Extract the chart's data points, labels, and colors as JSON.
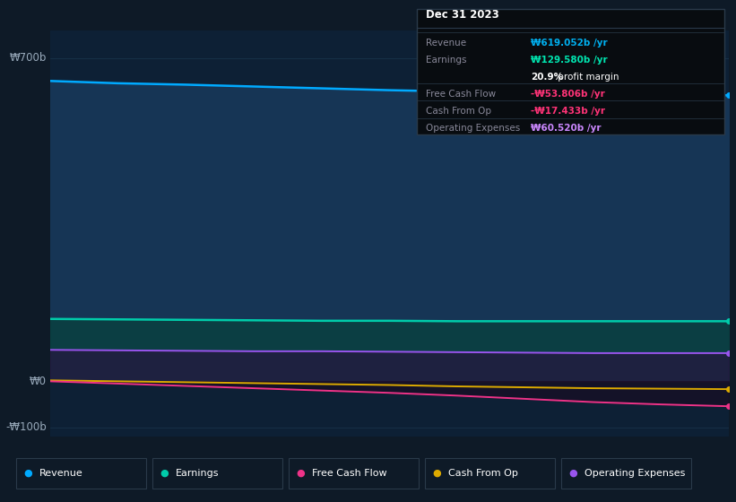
{
  "bg_color": "#0e1a27",
  "chart_bg": "#0d2035",
  "chart_bg2": "#0a1c30",
  "grid_color": "#1e3a52",
  "title_box_bg": "#080c10",
  "title_box_border": "#2a3a4a",
  "title_date": "Dec 31 2023",
  "info_rows": [
    {
      "label": "Revenue",
      "value": "₩619.052b /yr",
      "value_color": "#00b0f0",
      "divider": true
    },
    {
      "label": "Earnings",
      "value": "₩129.580b /yr",
      "value_color": "#00e5b0",
      "divider": false
    },
    {
      "label": "",
      "value": "20.9% profit margin",
      "value_color": "#ffffff",
      "divider": false
    },
    {
      "label": "Free Cash Flow",
      "value": "-₩53.806b /yr",
      "value_color": "#ff3377",
      "divider": true
    },
    {
      "label": "Cash From Op",
      "value": "-₩17.433b /yr",
      "value_color": "#ff3377",
      "divider": true
    },
    {
      "label": "Operating Expenses",
      "value": "₩60.520b /yr",
      "value_color": "#cc88ff",
      "divider": true
    }
  ],
  "x_values": [
    0,
    1,
    2,
    3,
    4,
    5,
    6,
    7,
    8,
    9,
    10
  ],
  "revenue": [
    650,
    645,
    642,
    638,
    634,
    630,
    627,
    623,
    620,
    619,
    619
  ],
  "earnings": [
    135,
    134,
    133,
    132,
    131,
    131,
    130,
    130,
    130,
    130,
    130
  ],
  "free_cash_flow": [
    0,
    -5,
    -10,
    -15,
    -20,
    -25,
    -31,
    -38,
    -45,
    -50,
    -54
  ],
  "cash_from_op": [
    2,
    0,
    -2,
    -4,
    -6,
    -8,
    -11,
    -13,
    -15,
    -16,
    -17
  ],
  "operating_expenses": [
    68,
    67,
    66,
    65,
    65,
    64,
    63,
    62,
    61,
    61,
    61
  ],
  "revenue_line_color": "#00aaff",
  "revenue_fill_color": "#163555",
  "earnings_line_color": "#00ccaa",
  "earnings_fill_color": "#0a4040",
  "opex_line_color": "#9955ee",
  "opex_fill_color": "#251840",
  "fcf_line_color": "#ee3388",
  "cfo_line_color": "#ddaa00",
  "dot_size": 5,
  "ylim_min": -120,
  "ylim_max": 760,
  "grid_lines_y": [
    700,
    525,
    350,
    175,
    0,
    -100
  ],
  "ytick_positions": [
    700,
    0,
    -100
  ],
  "ytick_labels": [
    "₩700b",
    "₩0",
    "-₩100b"
  ],
  "legend_items": [
    {
      "label": "Revenue",
      "color": "#00aaff"
    },
    {
      "label": "Earnings",
      "color": "#00ccaa"
    },
    {
      "label": "Free Cash Flow",
      "color": "#ee3388"
    },
    {
      "label": "Cash From Op",
      "color": "#ddaa00"
    },
    {
      "label": "Operating Expenses",
      "color": "#9955ee"
    }
  ]
}
